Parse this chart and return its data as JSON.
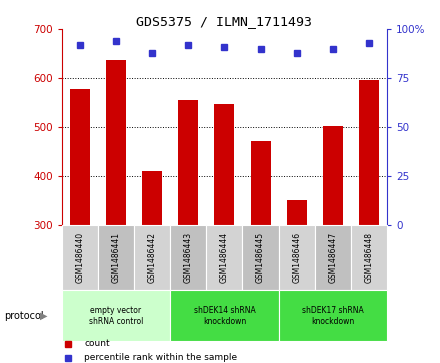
{
  "title": "GDS5375 / ILMN_1711493",
  "samples": [
    "GSM1486440",
    "GSM1486441",
    "GSM1486442",
    "GSM1486443",
    "GSM1486444",
    "GSM1486445",
    "GSM1486446",
    "GSM1486447",
    "GSM1486448"
  ],
  "counts": [
    578,
    637,
    410,
    556,
    548,
    471,
    352,
    502,
    596
  ],
  "percentile_ranks": [
    92,
    94,
    88,
    92,
    91,
    90,
    88,
    90,
    93
  ],
  "ylim_left": [
    300,
    700
  ],
  "ylim_right": [
    0,
    100
  ],
  "yticks_left": [
    300,
    400,
    500,
    600,
    700
  ],
  "yticks_right": [
    0,
    25,
    50,
    75,
    100
  ],
  "grid_values": [
    400,
    500,
    600
  ],
  "bar_color": "#cc0000",
  "dot_color": "#3333cc",
  "bar_bottom": 300,
  "protocols": [
    {
      "label": "empty vector\nshRNA control",
      "start": 0,
      "end": 3,
      "color": "#ccffcc"
    },
    {
      "label": "shDEK14 shRNA\nknockdown",
      "start": 3,
      "end": 6,
      "color": "#44dd44"
    },
    {
      "label": "shDEK17 shRNA\nknockdown",
      "start": 6,
      "end": 9,
      "color": "#44dd44"
    }
  ],
  "legend_items": [
    {
      "label": "count",
      "color": "#cc0000"
    },
    {
      "label": "percentile rank within the sample",
      "color": "#3333cc"
    }
  ],
  "protocol_label": "protocol",
  "left_tick_color": "#cc0000",
  "right_tick_color": "#3333cc",
  "right_tick_labels": [
    "0",
    "25",
    "50",
    "75",
    "100%"
  ],
  "sample_bg_color": "#d3d3d3",
  "sample_bg_alt_color": "#c0c0c0"
}
